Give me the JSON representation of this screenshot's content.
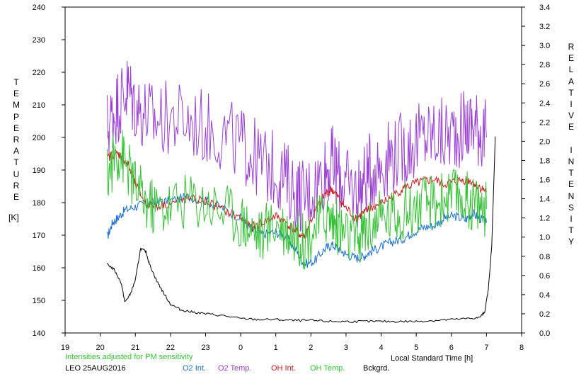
{
  "chart_data": {
    "type": "line",
    "left_axis": {
      "label": "TEMPERATURE",
      "unit": "[K]",
      "range": [
        140,
        240
      ],
      "ticks": [
        "140",
        "150",
        "160",
        "170",
        "180",
        "190",
        "200",
        "210",
        "220",
        "230",
        "240"
      ]
    },
    "right_axis": {
      "label": "RELATIVE INTENSITY",
      "range": [
        0.0,
        3.4
      ],
      "ticks": [
        "0.0",
        "0.2",
        "0.4",
        "0.6",
        "0.8",
        "1.0",
        "1.2",
        "1.4",
        "1.6",
        "1.8",
        "2.0",
        "2.2",
        "2.4",
        "2.6",
        "2.8",
        "3.0",
        "3.2",
        "3.4"
      ]
    },
    "x_axis": {
      "label": "Local Standard Time [h]",
      "range": [
        19,
        32
      ],
      "ticks": [
        "19",
        "20",
        "21",
        "22",
        "23",
        "0",
        "1",
        "2",
        "3",
        "4",
        "5",
        "6",
        "7",
        "8"
      ]
    },
    "note": "Intensities adjusted for PM sensitivity",
    "station_date": "LEO 25AUG2016",
    "grid": false,
    "series": [
      {
        "name": "O2 Int.",
        "color": "#1a6fd6",
        "axis": "right",
        "x": [
          20.2,
          20.35,
          20.5,
          20.7,
          21.0,
          21.3,
          21.6,
          22.0,
          22.5,
          23.0,
          23.5,
          24.0,
          24.3,
          24.6,
          25.0,
          25.3,
          25.6,
          25.8,
          26.1,
          26.4,
          26.6,
          26.8,
          27.0,
          27.3,
          27.5,
          27.7,
          28.0,
          28.3,
          28.6,
          28.9,
          29.2,
          29.5,
          29.8,
          30.1,
          30.4,
          30.6,
          30.8,
          31.0
        ],
        "y": [
          1.0,
          1.15,
          1.2,
          1.28,
          1.32,
          1.35,
          1.36,
          1.38,
          1.42,
          1.38,
          1.3,
          1.2,
          1.08,
          1.03,
          1.05,
          1.0,
          0.85,
          0.72,
          0.75,
          0.88,
          0.92,
          0.88,
          0.82,
          0.78,
          0.8,
          0.85,
          0.9,
          0.95,
          0.98,
          1.05,
          1.1,
          1.12,
          1.2,
          1.22,
          1.18,
          1.25,
          1.2,
          1.15
        ]
      },
      {
        "name": "O2 Temp.",
        "color": "#9b3fd6",
        "axis": "left",
        "x": [
          20.2,
          20.4,
          20.6,
          20.8,
          21.0,
          21.3,
          21.6,
          22.0,
          22.5,
          23.0,
          23.5,
          24.0,
          24.3,
          24.6,
          25.0,
          25.3,
          25.6,
          25.8,
          26.1,
          26.4,
          26.6,
          26.8,
          27.0,
          27.3,
          27.5,
          27.7,
          28.0,
          28.3,
          28.6,
          28.9,
          29.2,
          29.5,
          29.8,
          30.1,
          30.4,
          30.6,
          30.8,
          31.0
        ],
        "y": [
          203,
          208,
          212,
          215,
          210,
          207,
          205,
          206,
          205,
          203,
          201,
          198,
          195,
          192,
          190,
          187,
          183,
          182,
          185,
          190,
          192,
          188,
          185,
          183,
          186,
          190,
          192,
          195,
          196,
          198,
          200,
          201,
          200,
          202,
          203,
          204,
          203,
          200
        ]
      },
      {
        "name": "OH Int.",
        "color": "#d41a1a",
        "axis": "right",
        "x": [
          20.2,
          20.4,
          20.6,
          20.8,
          21.0,
          21.3,
          21.6,
          22.0,
          22.5,
          23.0,
          23.5,
          24.0,
          24.3,
          24.6,
          25.0,
          25.3,
          25.6,
          25.8,
          26.1,
          26.4,
          26.6,
          26.8,
          27.0,
          27.3,
          27.5,
          27.7,
          28.0,
          28.3,
          28.6,
          28.9,
          29.2,
          29.5,
          29.8,
          30.1,
          30.4,
          30.6,
          30.8,
          31.0
        ],
        "y": [
          1.82,
          1.88,
          1.85,
          1.75,
          1.55,
          1.35,
          1.33,
          1.35,
          1.4,
          1.38,
          1.28,
          1.2,
          1.1,
          1.15,
          1.22,
          1.15,
          1.05,
          1.0,
          1.25,
          1.45,
          1.5,
          1.4,
          1.3,
          1.2,
          1.25,
          1.3,
          1.35,
          1.42,
          1.5,
          1.55,
          1.58,
          1.6,
          1.55,
          1.58,
          1.6,
          1.58,
          1.52,
          1.48
        ]
      },
      {
        "name": "OH Temp.",
        "color": "#33c233",
        "axis": "left",
        "x": [
          20.2,
          20.4,
          20.6,
          20.8,
          21.0,
          21.3,
          21.6,
          22.0,
          22.5,
          23.0,
          23.5,
          24.0,
          24.3,
          24.6,
          25.0,
          25.3,
          25.6,
          25.8,
          26.1,
          26.4,
          26.6,
          26.8,
          27.0,
          27.3,
          27.5,
          27.7,
          28.0,
          28.3,
          28.6,
          28.9,
          29.2,
          29.5,
          29.8,
          30.1,
          30.4,
          30.6,
          30.8,
          31.0
        ],
        "y": [
          188,
          194,
          195,
          190,
          185,
          180,
          178,
          179,
          181,
          180,
          178,
          175,
          172,
          170,
          174,
          172,
          170,
          168,
          172,
          176,
          175,
          172,
          170,
          168,
          171,
          173,
          175,
          176,
          177,
          178,
          179,
          180,
          181,
          182,
          181,
          180,
          179,
          178
        ]
      },
      {
        "name": "Bckgrd.",
        "color": "#000000",
        "axis": "right",
        "x": [
          20.2,
          20.4,
          20.6,
          20.7,
          20.85,
          21.0,
          21.15,
          21.3,
          21.4,
          21.6,
          21.8,
          22.0,
          22.3,
          22.6,
          23.0,
          23.5,
          24.0,
          24.5,
          25.0,
          25.5,
          26.0,
          26.5,
          27.0,
          27.5,
          28.0,
          28.5,
          29.0,
          29.5,
          30.0,
          30.5,
          30.8,
          30.95,
          31.05,
          31.15,
          31.25
        ],
        "y": [
          0.72,
          0.66,
          0.52,
          0.32,
          0.4,
          0.55,
          0.88,
          0.85,
          0.72,
          0.55,
          0.42,
          0.3,
          0.24,
          0.22,
          0.2,
          0.18,
          0.15,
          0.14,
          0.14,
          0.13,
          0.13,
          0.12,
          0.12,
          0.12,
          0.12,
          0.12,
          0.12,
          0.13,
          0.14,
          0.15,
          0.16,
          0.22,
          0.45,
          0.9,
          2.05
        ]
      }
    ]
  }
}
